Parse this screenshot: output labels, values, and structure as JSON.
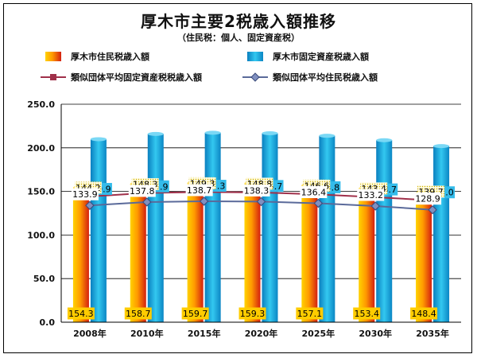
{
  "title": "厚木市主要2税歳入額推移",
  "subtitle": "（住民税：個人、固定資産税）",
  "chart_data": {
    "type": "bar",
    "categories": [
      "2008年",
      "2010年",
      "2015年",
      "2020年",
      "2025年",
      "2030年",
      "2035年"
    ],
    "ylim": [
      0,
      250
    ],
    "yticks": [
      "0.0",
      "50.0",
      "100.0",
      "150.0",
      "200.0",
      "250.0"
    ],
    "grid": true,
    "series": [
      {
        "name": "厚木市住民税歳入額",
        "type": "bar",
        "color": "#ff9900",
        "values": [
          154.3,
          158.7,
          159.7,
          159.3,
          157.1,
          153.4,
          148.4
        ],
        "labels": [
          "154.3",
          "158.7",
          "159.7",
          "159.3",
          "157.1",
          "153.4",
          "148.4"
        ]
      },
      {
        "name": "厚木市固定資産税歳入額",
        "type": "bar",
        "color": "#1aa3d6",
        "values": [
          209.9,
          215.9,
          217.3,
          216.7,
          213.8,
          208.7,
          202.0
        ],
        "labels": [
          "209.9",
          "215.9",
          "217.3",
          "216.7",
          "213.8",
          "208.7",
          "202.0"
        ]
      },
      {
        "name": "類似団体平均固定資産税税歳入額",
        "type": "line",
        "color": "#a0304a",
        "marker": "square",
        "values": [
          144.2,
          148.3,
          149.3,
          148.8,
          146.6,
          143.4,
          139.7
        ],
        "labels": [
          "144.2",
          "148.3",
          "149.3",
          "148.8",
          "146.6",
          "143.4",
          "139.7"
        ]
      },
      {
        "name": "類似団体平均住民税歳入額",
        "type": "line",
        "color": "#5a6a9a",
        "marker": "diamond",
        "values": [
          133.9,
          137.8,
          138.7,
          138.3,
          136.4,
          133.2,
          128.9
        ],
        "labels": [
          "133.9",
          "137.8",
          "138.7",
          "138.3",
          "136.4",
          "133.2",
          "128.9"
        ]
      }
    ]
  }
}
